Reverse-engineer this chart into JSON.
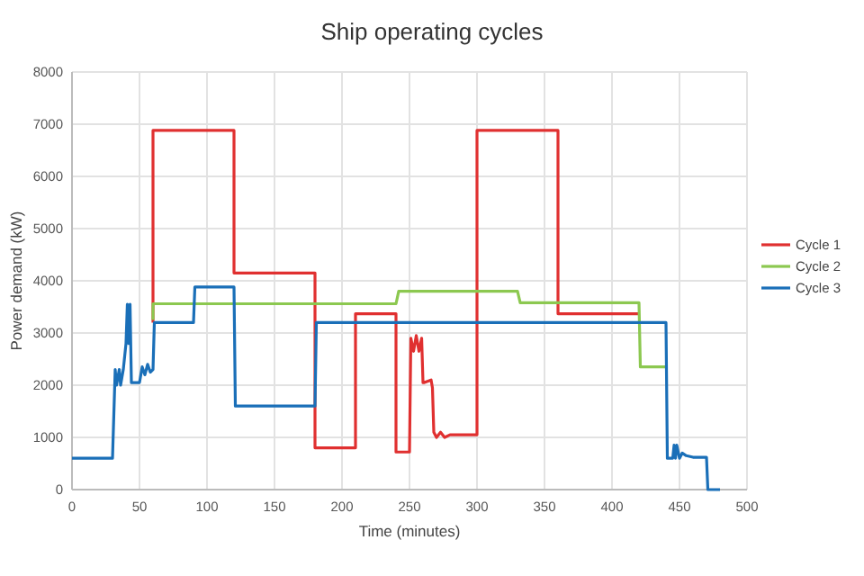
{
  "chart_data": {
    "type": "line",
    "title": "Ship operating cycles",
    "xlabel": "Time (minutes)",
    "ylabel": "Power demand (kW)",
    "xlim": [
      0,
      500
    ],
    "xticks": [
      0,
      50,
      100,
      150,
      200,
      250,
      300,
      350,
      400,
      450,
      500
    ],
    "ylim": [
      0,
      8000
    ],
    "yticks": [
      0,
      1000,
      2000,
      3000,
      4000,
      5000,
      6000,
      7000,
      8000
    ],
    "grid": true,
    "legend": "right",
    "marker": "none",
    "line_style": "solid",
    "series": [
      {
        "name": "Cycle 1",
        "color": "#e03030",
        "x": [
          60,
          60,
          120,
          120,
          180,
          180,
          210,
          210,
          240,
          240,
          250,
          251,
          253,
          255,
          257,
          259,
          260,
          261,
          266,
          267,
          268,
          270,
          273,
          276,
          280,
          300,
          300,
          360,
          360,
          420
        ],
        "values": [
          3200,
          6880,
          6880,
          4150,
          4150,
          800,
          800,
          3370,
          3370,
          720,
          720,
          2900,
          2650,
          2950,
          2650,
          2900,
          2050,
          2050,
          2100,
          1950,
          1100,
          1000,
          1100,
          1000,
          1050,
          1050,
          6880,
          6880,
          3370,
          3370
        ]
      },
      {
        "name": "Cycle 2",
        "color": "#8cc850",
        "x": [
          60,
          60,
          240,
          242,
          330,
          332,
          420,
          421,
          440
        ],
        "values": [
          3250,
          3560,
          3560,
          3800,
          3800,
          3580,
          3580,
          2350,
          2350
        ]
      },
      {
        "name": "Cycle 3",
        "color": "#1a6fb8",
        "x": [
          0,
          30,
          32,
          33,
          35,
          36,
          38,
          40,
          41,
          42,
          43,
          44,
          50,
          52,
          54,
          56,
          58,
          60,
          61,
          90,
          91,
          120,
          121,
          180,
          181,
          440,
          441,
          445,
          446,
          447,
          448,
          450,
          452,
          455,
          460,
          470,
          471,
          480
        ],
        "values": [
          600,
          600,
          2300,
          2000,
          2300,
          2000,
          2300,
          2800,
          3550,
          2800,
          3550,
          2050,
          2050,
          2350,
          2200,
          2400,
          2250,
          2300,
          3200,
          3200,
          3880,
          3880,
          1600,
          1600,
          3200,
          3200,
          600,
          600,
          850,
          600,
          850,
          600,
          700,
          650,
          620,
          620,
          0,
          0
        ]
      }
    ]
  }
}
